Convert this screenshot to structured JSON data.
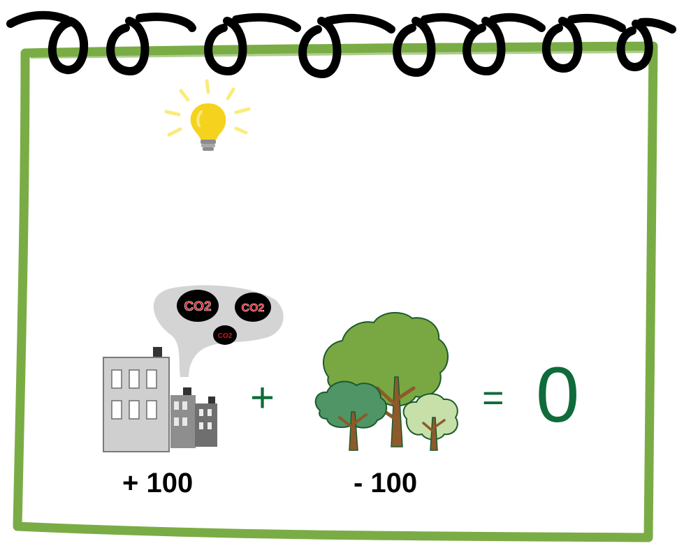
{
  "equation": {
    "emission_label": "+ 100",
    "plus_sign": "+",
    "offset_label": "- 100",
    "equals_sign": "=",
    "result": "0"
  },
  "co2_bubbles": [
    "CO2",
    "CO2",
    "CO2"
  ],
  "icons": {
    "idea": "lightbulb-icon",
    "emitter": "factory-icon",
    "absorber": "trees-icon",
    "binding": "notebook-spiral-icon"
  },
  "colors": {
    "frame": "#7aac45",
    "operator": "#0f6b3a",
    "bulb": "#f5d21e",
    "co2_text": "#e0141e",
    "smoke": "#d4d4d4"
  }
}
